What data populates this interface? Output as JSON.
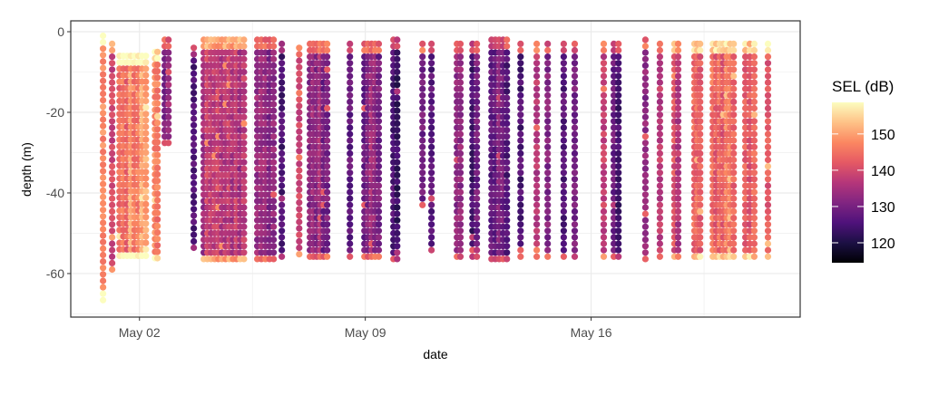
{
  "chart_data": {
    "type": "scatter",
    "title": "",
    "xlabel": "date",
    "ylabel": "depth (m)",
    "x_units": "day of May (fractional)",
    "xlim": [
      -0.13,
      22.48
    ],
    "ylim": [
      -70.8,
      2.7
    ],
    "x_ticks": [
      {
        "value": 2,
        "label": "May 02"
      },
      {
        "value": 9,
        "label": "May 09"
      },
      {
        "value": 16,
        "label": "May 16"
      }
    ],
    "y_ticks": [
      {
        "value": 0,
        "label": "0"
      },
      {
        "value": -20,
        "label": "-20"
      },
      {
        "value": -40,
        "label": "-40"
      },
      {
        "value": -60,
        "label": "-60"
      }
    ],
    "grid": true,
    "color_scale": {
      "title": "SEL (dB)",
      "palette": "magma",
      "range": [
        114.5,
        158.7
      ],
      "ticks": [
        {
          "value": 150,
          "label": "150"
        },
        {
          "value": 140,
          "label": "140"
        },
        {
          "value": 130,
          "label": "130"
        },
        {
          "value": 120,
          "label": "120"
        }
      ],
      "stops": [
        "#000004",
        "#1c1044",
        "#4f127b",
        "#812581",
        "#b5367a",
        "#e55964",
        "#fb8761",
        "#fec287",
        "#fcfdbf"
      ]
    },
    "legend_position": "right",
    "segments_note": "each segment = [start_day, end_day, top_depth, bottom_depth, mean_SEL]",
    "segments": [
      [
        0.76,
        1.04,
        -1,
        -67,
        151
      ],
      [
        1.04,
        1.27,
        -3,
        -60,
        140
      ],
      [
        1.27,
        2.31,
        -6,
        -57,
        147
      ],
      [
        2.37,
        2.67,
        -5,
        -57,
        145
      ],
      [
        2.67,
        3.01,
        -2,
        -29,
        131
      ],
      [
        3.57,
        3.77,
        -4,
        -55,
        126
      ],
      [
        3.88,
        5.35,
        -2,
        -57,
        138
      ],
      [
        5.54,
        6.27,
        -2,
        -57,
        132
      ],
      [
        6.3,
        6.55,
        -3,
        -57,
        125
      ],
      [
        6.84,
        7.03,
        -4,
        -56,
        136
      ],
      [
        7.17,
        7.93,
        -3,
        -57,
        132
      ],
      [
        8.41,
        8.69,
        -3,
        -57,
        127
      ],
      [
        8.86,
        9.53,
        -3,
        -57,
        132
      ],
      [
        9.76,
        10.1,
        -2,
        -57,
        126
      ],
      [
        10.66,
        10.83,
        -3,
        -44,
        133
      ],
      [
        10.94,
        11.22,
        -3,
        -55,
        130
      ],
      [
        11.73,
        12.06,
        -3,
        -57,
        130
      ],
      [
        12.21,
        12.57,
        -3,
        -56,
        128
      ],
      [
        12.8,
        13.5,
        -2,
        -57,
        129
      ],
      [
        13.7,
        13.92,
        -3,
        -56,
        128
      ],
      [
        14.2,
        14.37,
        -3,
        -56,
        134
      ],
      [
        14.54,
        14.82,
        -3,
        -57,
        130
      ],
      [
        15.04,
        15.16,
        -3,
        -57,
        127
      ],
      [
        15.38,
        15.66,
        -3,
        -57,
        128
      ],
      [
        16.28,
        16.51,
        -3,
        -57,
        136
      ],
      [
        16.59,
        16.96,
        -3,
        -57,
        127
      ],
      [
        17.57,
        17.85,
        -2,
        -57,
        133
      ],
      [
        18.02,
        18.25,
        -3,
        -57,
        134
      ],
      [
        18.47,
        18.81,
        -3,
        -57,
        138
      ],
      [
        19.09,
        19.49,
        -3,
        -57,
        142
      ],
      [
        19.66,
        20.53,
        -3,
        -57,
        143
      ],
      [
        20.67,
        21.17,
        -3,
        -57,
        142
      ],
      [
        21.37,
        21.57,
        -3,
        -57,
        143
      ]
    ]
  }
}
